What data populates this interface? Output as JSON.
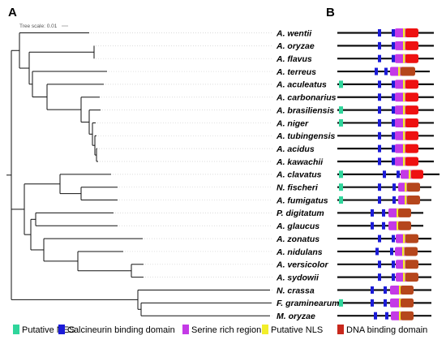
{
  "panels": {
    "a": "A",
    "b": "B"
  },
  "tree_scale": "Tree scale: 0.01",
  "species": [
    "A. wentii",
    "A. oryzae",
    "A. flavus",
    "A. terreus",
    "A. aculeatus",
    "A. carbonarius",
    "A. brasiliensis",
    "A. niger",
    "A. tubingensis",
    "A. acidus",
    "A. kawachii",
    "A. clavatus",
    "N. fischeri",
    "A. fumigatus",
    "P. digitatum",
    "A. glaucus",
    "A. zonatus",
    "A. nidulans",
    "A. versicolor",
    "A. sydowii",
    "N. crassa",
    "F. graminearum",
    "M. oryzae"
  ],
  "legend": [
    {
      "label": "Putative NES",
      "color": "#2fd59b"
    },
    {
      "label": "Calcineurin binding domain",
      "color": "#1b1bd8"
    },
    {
      "label": "Serine rich region",
      "color": "#c43ae6"
    },
    {
      "label": "Putative NLS",
      "color": "#f2ee2a"
    },
    {
      "label": "DNA binding domain",
      "color": "#c8281c"
    }
  ],
  "domain_colors": {
    "nes": "#2fd59b",
    "cbd": "#1b1bd8",
    "ser": "#c43ae6",
    "nls": "#f2ee2a",
    "dbd_red": "#ee1111",
    "dbd_dark": "#b5461c"
  }
}
